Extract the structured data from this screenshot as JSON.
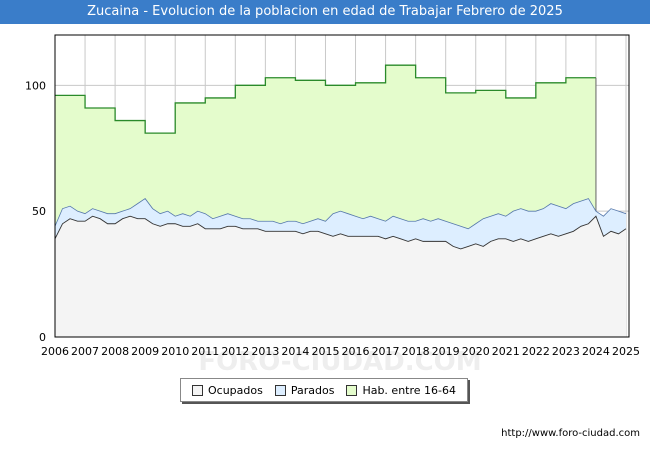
{
  "title": "Zucaina - Evolucion de la poblacion en edad de Trabajar Febrero de 2025",
  "source": "http://www.foro-ciudad.com",
  "watermark": "FORO-CIUDAD.COM",
  "colors": {
    "title_bg": "#3a7dc9",
    "ocupados": "#f4f4f4",
    "parados": "#ddeeff",
    "hab": "#e4fccc",
    "hab_line": "#2a8a2a"
  },
  "chart_data": {
    "type": "area",
    "title": "Zucaina - Evolucion de la poblacion en edad de Trabajar Febrero de 2025",
    "xlabel": "",
    "ylabel": "",
    "xlim": [
      2006,
      2025.1
    ],
    "ylim": [
      0,
      120
    ],
    "yticks": [
      0,
      50,
      100
    ],
    "xticks": [
      "2006",
      "2007",
      "2008",
      "2009",
      "2010",
      "2011",
      "2012",
      "2013",
      "2014",
      "2015",
      "2016",
      "2017",
      "2018",
      "2019",
      "2020",
      "2021",
      "2022",
      "2023",
      "2024",
      "2025"
    ],
    "grid": true,
    "legend_position": "bottom",
    "series": [
      {
        "name": "Hab. entre 16-64",
        "kind": "step",
        "points": [
          [
            2006,
            96
          ],
          [
            2007,
            91
          ],
          [
            2008,
            86
          ],
          [
            2009,
            81
          ],
          [
            2010,
            93
          ],
          [
            2011,
            95
          ],
          [
            2012,
            100
          ],
          [
            2013,
            103
          ],
          [
            2014,
            102
          ],
          [
            2015,
            100
          ],
          [
            2016,
            101
          ],
          [
            2017,
            108
          ],
          [
            2018,
            103
          ],
          [
            2019,
            97
          ],
          [
            2020,
            98
          ],
          [
            2021,
            95
          ],
          [
            2022,
            101
          ],
          [
            2023,
            103
          ],
          [
            2024,
            null
          ]
        ]
      },
      {
        "name": "Parados",
        "kind": "line",
        "points": [
          [
            2006.0,
            44
          ],
          [
            2006.25,
            51
          ],
          [
            2006.5,
            52
          ],
          [
            2006.75,
            50
          ],
          [
            2007.0,
            49
          ],
          [
            2007.25,
            51
          ],
          [
            2007.5,
            50
          ],
          [
            2007.75,
            49
          ],
          [
            2008.0,
            49
          ],
          [
            2008.25,
            50
          ],
          [
            2008.5,
            51
          ],
          [
            2008.75,
            53
          ],
          [
            2009.0,
            55
          ],
          [
            2009.25,
            51
          ],
          [
            2009.5,
            49
          ],
          [
            2009.75,
            50
          ],
          [
            2010.0,
            48
          ],
          [
            2010.25,
            49
          ],
          [
            2010.5,
            48
          ],
          [
            2010.75,
            50
          ],
          [
            2011.0,
            49
          ],
          [
            2011.25,
            47
          ],
          [
            2011.5,
            48
          ],
          [
            2011.75,
            49
          ],
          [
            2012.0,
            48
          ],
          [
            2012.25,
            47
          ],
          [
            2012.5,
            47
          ],
          [
            2012.75,
            46
          ],
          [
            2013.0,
            46
          ],
          [
            2013.25,
            46
          ],
          [
            2013.5,
            45
          ],
          [
            2013.75,
            46
          ],
          [
            2014.0,
            46
          ],
          [
            2014.25,
            45
          ],
          [
            2014.5,
            46
          ],
          [
            2014.75,
            47
          ],
          [
            2015.0,
            46
          ],
          [
            2015.25,
            49
          ],
          [
            2015.5,
            50
          ],
          [
            2015.75,
            49
          ],
          [
            2016.0,
            48
          ],
          [
            2016.25,
            47
          ],
          [
            2016.5,
            48
          ],
          [
            2016.75,
            47
          ],
          [
            2017.0,
            46
          ],
          [
            2017.25,
            48
          ],
          [
            2017.5,
            47
          ],
          [
            2017.75,
            46
          ],
          [
            2018.0,
            46
          ],
          [
            2018.25,
            47
          ],
          [
            2018.5,
            46
          ],
          [
            2018.75,
            47
          ],
          [
            2019.0,
            46
          ],
          [
            2019.25,
            45
          ],
          [
            2019.5,
            44
          ],
          [
            2019.75,
            43
          ],
          [
            2020.0,
            45
          ],
          [
            2020.25,
            47
          ],
          [
            2020.5,
            48
          ],
          [
            2020.75,
            49
          ],
          [
            2021.0,
            48
          ],
          [
            2021.25,
            50
          ],
          [
            2021.5,
            51
          ],
          [
            2021.75,
            50
          ],
          [
            2022.0,
            50
          ],
          [
            2022.25,
            51
          ],
          [
            2022.5,
            53
          ],
          [
            2022.75,
            52
          ],
          [
            2023.0,
            51
          ],
          [
            2023.25,
            53
          ],
          [
            2023.5,
            54
          ],
          [
            2023.75,
            55
          ],
          [
            2024.0,
            50
          ],
          [
            2024.25,
            48
          ],
          [
            2024.5,
            51
          ],
          [
            2024.75,
            50
          ],
          [
            2025.0,
            49
          ]
        ]
      },
      {
        "name": "Ocupados",
        "kind": "line",
        "points": [
          [
            2006.0,
            39
          ],
          [
            2006.25,
            45
          ],
          [
            2006.5,
            47
          ],
          [
            2006.75,
            46
          ],
          [
            2007.0,
            46
          ],
          [
            2007.25,
            48
          ],
          [
            2007.5,
            47
          ],
          [
            2007.75,
            45
          ],
          [
            2008.0,
            45
          ],
          [
            2008.25,
            47
          ],
          [
            2008.5,
            48
          ],
          [
            2008.75,
            47
          ],
          [
            2009.0,
            47
          ],
          [
            2009.25,
            45
          ],
          [
            2009.5,
            44
          ],
          [
            2009.75,
            45
          ],
          [
            2010.0,
            45
          ],
          [
            2010.25,
            44
          ],
          [
            2010.5,
            44
          ],
          [
            2010.75,
            45
          ],
          [
            2011.0,
            43
          ],
          [
            2011.25,
            43
          ],
          [
            2011.5,
            43
          ],
          [
            2011.75,
            44
          ],
          [
            2012.0,
            44
          ],
          [
            2012.25,
            43
          ],
          [
            2012.5,
            43
          ],
          [
            2012.75,
            43
          ],
          [
            2013.0,
            42
          ],
          [
            2013.25,
            42
          ],
          [
            2013.5,
            42
          ],
          [
            2013.75,
            42
          ],
          [
            2014.0,
            42
          ],
          [
            2014.25,
            41
          ],
          [
            2014.5,
            42
          ],
          [
            2014.75,
            42
          ],
          [
            2015.0,
            41
          ],
          [
            2015.25,
            40
          ],
          [
            2015.5,
            41
          ],
          [
            2015.75,
            40
          ],
          [
            2016.0,
            40
          ],
          [
            2016.25,
            40
          ],
          [
            2016.5,
            40
          ],
          [
            2016.75,
            40
          ],
          [
            2017.0,
            39
          ],
          [
            2017.25,
            40
          ],
          [
            2017.5,
            39
          ],
          [
            2017.75,
            38
          ],
          [
            2018.0,
            39
          ],
          [
            2018.25,
            38
          ],
          [
            2018.5,
            38
          ],
          [
            2018.75,
            38
          ],
          [
            2019.0,
            38
          ],
          [
            2019.25,
            36
          ],
          [
            2019.5,
            35
          ],
          [
            2019.75,
            36
          ],
          [
            2020.0,
            37
          ],
          [
            2020.25,
            36
          ],
          [
            2020.5,
            38
          ],
          [
            2020.75,
            39
          ],
          [
            2021.0,
            39
          ],
          [
            2021.25,
            38
          ],
          [
            2021.5,
            39
          ],
          [
            2021.75,
            38
          ],
          [
            2022.0,
            39
          ],
          [
            2022.25,
            40
          ],
          [
            2022.5,
            41
          ],
          [
            2022.75,
            40
          ],
          [
            2023.0,
            41
          ],
          [
            2023.25,
            42
          ],
          [
            2023.5,
            44
          ],
          [
            2023.75,
            45
          ],
          [
            2024.0,
            48
          ],
          [
            2024.25,
            40
          ],
          [
            2024.5,
            42
          ],
          [
            2024.75,
            41
          ],
          [
            2025.0,
            43
          ]
        ]
      }
    ]
  },
  "legend": {
    "ocupados": "Ocupados",
    "parados": "Parados",
    "hab": "Hab. entre 16-64"
  }
}
